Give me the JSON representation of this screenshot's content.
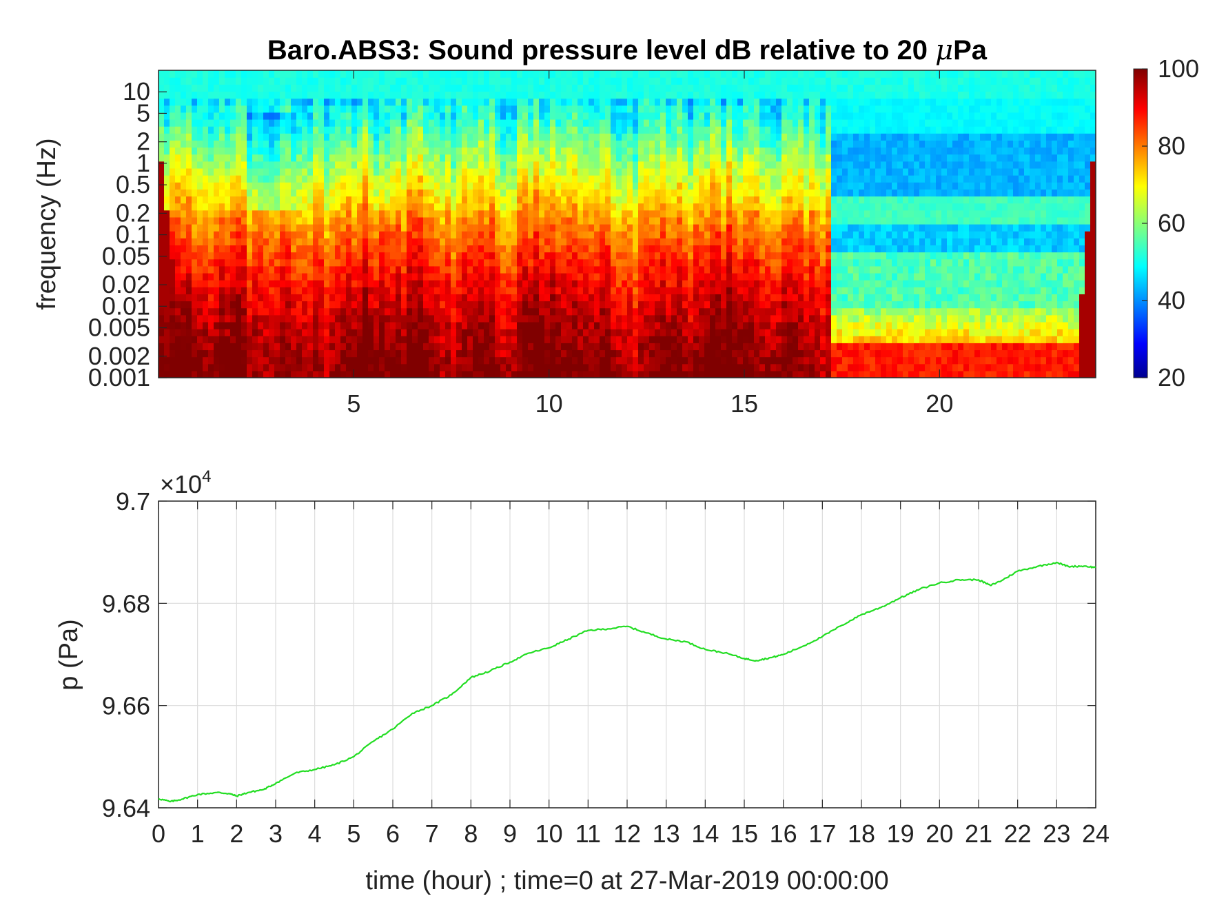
{
  "chart_data": [
    {
      "type": "heatmap",
      "title_main": "Baro.ABS3: Sound pressure level dB relative to 20 ",
      "title_mu": "μ",
      "title_tail": "Pa",
      "ylabel": "frequency (Hz)",
      "xlabel": "",
      "x_ticks": [
        5,
        10,
        15,
        20
      ],
      "x_tick_labels": [
        "5",
        "10",
        "15",
        "20"
      ],
      "xlim": [
        0,
        24
      ],
      "y_scale": "log",
      "ylim": [
        0.001,
        20
      ],
      "y_ticks": [
        0.001,
        0.002,
        0.005,
        0.01,
        0.02,
        0.05,
        0.1,
        0.2,
        0.5,
        1,
        2,
        5,
        10
      ],
      "y_tick_labels": [
        "0.001",
        "0.002",
        "0.005",
        "0.01",
        "0.02",
        "0.05",
        "0.1",
        "0.2",
        "0.5",
        "1",
        "2",
        "5",
        "10"
      ],
      "colormap": "jet",
      "colorbar": {
        "range": [
          20,
          100
        ],
        "ticks": [
          20,
          40,
          60,
          80,
          100
        ],
        "tick_labels": [
          "20",
          "40",
          "60",
          "80",
          "100"
        ]
      },
      "regime_change_hour": 17.2
    },
    {
      "type": "line",
      "xlabel": "time (hour) ; time=0 at 27-Mar-2019 00:00:00",
      "ylabel": "p (Pa)",
      "exponent_base": "×10",
      "exponent_power": "4",
      "xlim": [
        0,
        24
      ],
      "ylim": [
        9.64,
        9.7
      ],
      "x_ticks": [
        0,
        1,
        2,
        3,
        4,
        5,
        6,
        7,
        8,
        9,
        10,
        11,
        12,
        13,
        14,
        15,
        16,
        17,
        18,
        19,
        20,
        21,
        22,
        23,
        24
      ],
      "x_tick_labels": [
        "0",
        "1",
        "2",
        "3",
        "4",
        "5",
        "6",
        "7",
        "8",
        "9",
        "10",
        "11",
        "12",
        "13",
        "14",
        "15",
        "16",
        "17",
        "18",
        "19",
        "20",
        "21",
        "22",
        "23",
        "24"
      ],
      "y_ticks": [
        9.64,
        9.66,
        9.68,
        9.7
      ],
      "y_tick_labels": [
        "9.64",
        "9.66",
        "9.68",
        "9.7"
      ],
      "grid": true,
      "line_color": "#22dd22",
      "series": [
        {
          "x": [
            0,
            0.3,
            0.6,
            1.0,
            1.5,
            1.8,
            2.0,
            2.3,
            2.7,
            3.0,
            3.5,
            4.0,
            4.5,
            5.0,
            5.5,
            6.0,
            6.5,
            7.0,
            7.5,
            8.0,
            8.5,
            9.0,
            9.5,
            10.0,
            10.5,
            11.0,
            11.5,
            12.0,
            12.5,
            13.0,
            13.5,
            14.0,
            14.5,
            15.0,
            15.3,
            15.7,
            16.0,
            16.5,
            17.0,
            17.5,
            18.0,
            18.5,
            19.0,
            19.5,
            20.0,
            20.5,
            21.0,
            21.3,
            21.6,
            22.0,
            22.5,
            23.0,
            23.3,
            23.7,
            24.0
          ],
          "y": [
            96418,
            96412,
            96417,
            96426,
            96430,
            96428,
            96423,
            96430,
            96436,
            96448,
            96468,
            96475,
            96484,
            96500,
            96530,
            96554,
            96585,
            96600,
            96621,
            96655,
            96668,
            96685,
            96703,
            96713,
            96730,
            96747,
            96750,
            96755,
            96742,
            96730,
            96725,
            96710,
            96703,
            96692,
            96688,
            96694,
            96700,
            96716,
            96735,
            96757,
            96778,
            96792,
            96811,
            96828,
            96840,
            96846,
            96846,
            96835,
            96845,
            96863,
            96872,
            96880,
            96872,
            96873,
            96870
          ]
        }
      ]
    }
  ]
}
